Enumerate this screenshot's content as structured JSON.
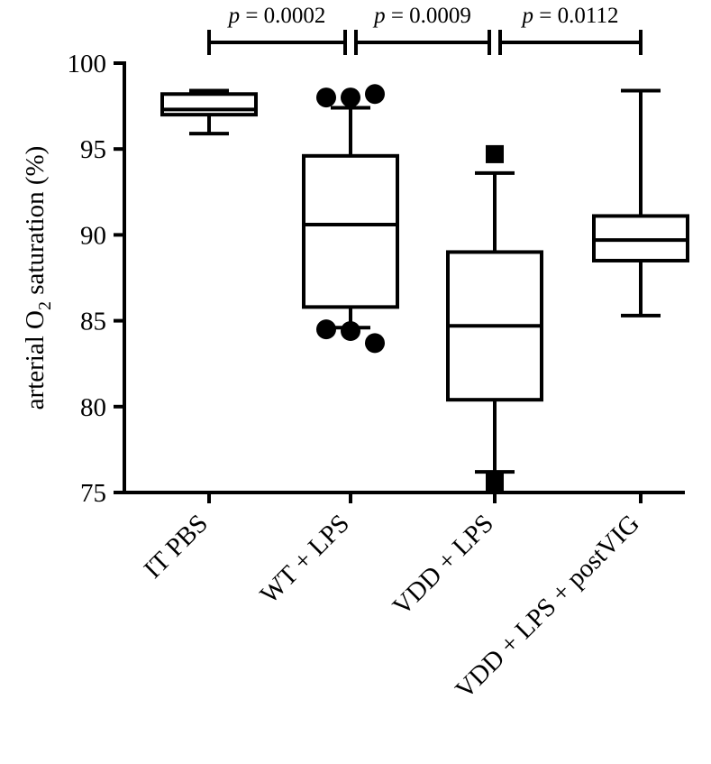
{
  "chart_data": {
    "type": "box",
    "ylabel": {
      "main": "arterial O",
      "sub": "2",
      "tail": " saturation (%)"
    },
    "ylim": [
      75,
      100
    ],
    "yticks": [
      75,
      80,
      85,
      90,
      95,
      100
    ],
    "categories": [
      "IT PBS",
      "WT + LPS",
      "VDD + LPS",
      "VDD + LPS + postVIG"
    ],
    "boxes": [
      {
        "category": "IT PBS",
        "whisker_low": 95.9,
        "q1": 97.0,
        "median": 97.3,
        "q3": 98.2,
        "whisker_high": 98.4,
        "outliers": [],
        "outlier_marker": "circle"
      },
      {
        "category": "WT + LPS",
        "whisker_low": 84.6,
        "q1": 85.8,
        "median": 90.6,
        "q3": 94.6,
        "whisker_high": 97.4,
        "outliers": [
          98.0,
          98.0,
          98.2,
          84.5,
          84.4,
          83.7
        ],
        "outlier_marker": "circle"
      },
      {
        "category": "VDD + LPS",
        "whisker_low": 76.2,
        "q1": 80.4,
        "median": 84.7,
        "q3": 89.0,
        "whisker_high": 93.6,
        "outliers": [
          94.7,
          75.6
        ],
        "outlier_marker": "square"
      },
      {
        "category": "VDD + LPS + postVIG",
        "whisker_low": 85.3,
        "q1": 88.5,
        "median": 89.7,
        "q3": 91.1,
        "whisker_high": 98.4,
        "outliers": [],
        "outlier_marker": "circle"
      }
    ],
    "comparisons": [
      {
        "from": "IT PBS",
        "to": "WT + LPS",
        "p_symbol": "p",
        "p_value": "= 0.0002"
      },
      {
        "from": "WT + LPS",
        "to": "VDD + LPS",
        "p_symbol": "p",
        "p_value": "= 0.0009"
      },
      {
        "from": "VDD + LPS",
        "to": "VDD + LPS + postVIG",
        "p_symbol": "p",
        "p_value": "= 0.0112"
      }
    ],
    "grid": false,
    "legend": "none"
  }
}
